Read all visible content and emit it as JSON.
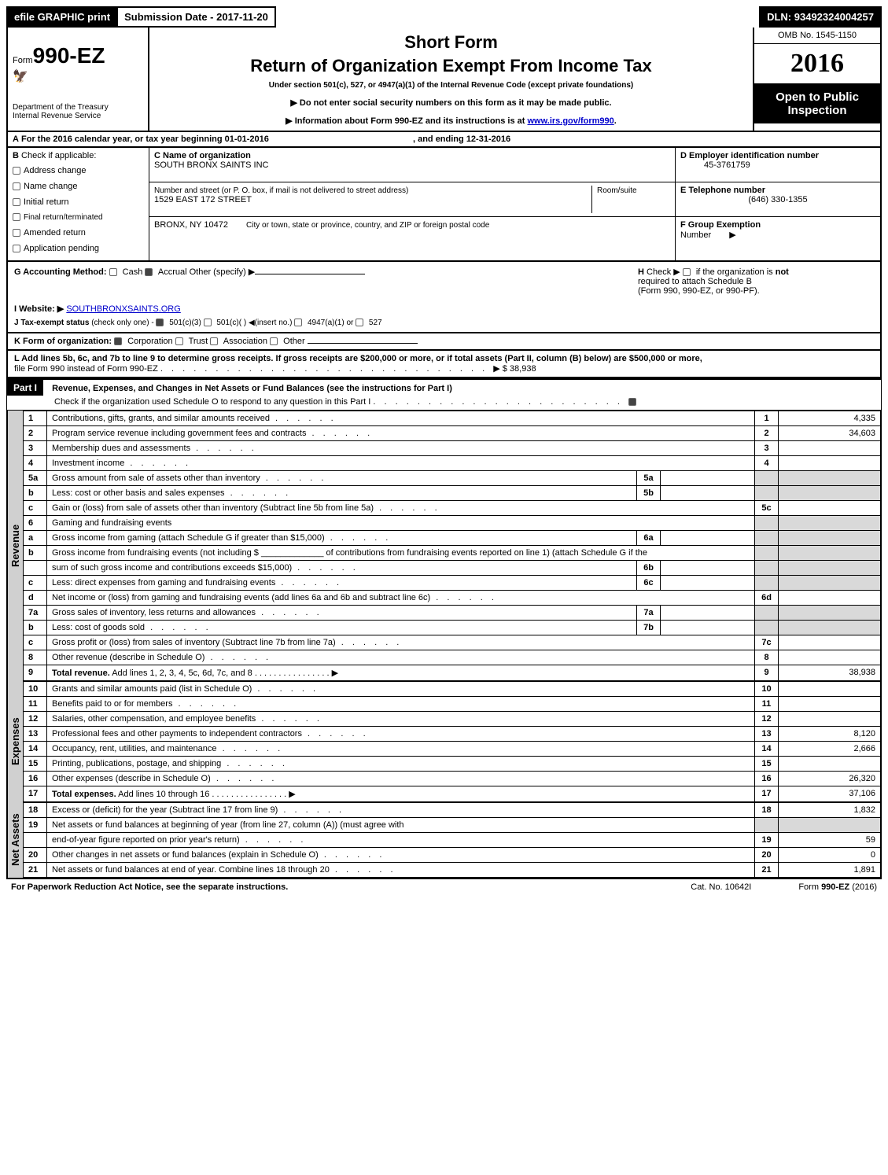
{
  "topbar": {
    "efile": "efile GRAPHIC print",
    "submission_label": "Submission Date - ",
    "submission_date": "2017-11-20",
    "dln_label": "DLN: ",
    "dln": "93492324004257"
  },
  "header": {
    "form_prefix": "Form",
    "form_number": "990-EZ",
    "dept1": "Department of the Treasury",
    "dept2": "Internal Revenue Service",
    "title_short": "Short Form",
    "title_main": "Return of Organization Exempt From Income Tax",
    "sub1": "Under section 501(c), 527, or 4947(a)(1) of the Internal Revenue Code (except private foundations)",
    "sub2": "▶ Do not enter social security numbers on this form as it may be made public.",
    "sub3_prefix": "▶ Information about Form 990-EZ and its instructions is at ",
    "sub3_link": "www.irs.gov/form990",
    "omb": "OMB No. 1545-1150",
    "year": "2016",
    "open1": "Open to Public",
    "open2": "Inspection"
  },
  "lineA": {
    "label_a": "A",
    "text1": "For the 2016 calendar year, or tax year beginning ",
    "begin": "01-01-2016",
    "text2": ", and ending ",
    "end": "12-31-2016"
  },
  "boxB": {
    "label_b": "B",
    "check_label": "Check if applicable:",
    "items": [
      "Address change",
      "Name change",
      "Initial return",
      "Final return/terminated",
      "Amended return",
      "Application pending"
    ]
  },
  "boxC": {
    "label": "C Name of organization",
    "name": "SOUTH BRONX SAINTS INC",
    "addr_label": "Number and street (or P. O. box, if mail is not delivered to street address)",
    "addr": "1529 EAST 172 STREET",
    "room_label": "Room/suite",
    "city_full": "BRONX, NY  10472",
    "city_label": "City or town, state or province, country, and ZIP or foreign postal code"
  },
  "boxDEF": {
    "d_label": "D Employer identification number",
    "d_value": "45-3761759",
    "e_label": "E Telephone number",
    "e_value": "(646) 330-1355",
    "f_label": "F Group Exemption",
    "f_label2": "Number",
    "f_arrow": "▶"
  },
  "gh": {
    "g_label": "G Accounting Method:",
    "g_cash": "Cash",
    "g_accrual": "Accrual",
    "g_other": "Other (specify) ▶",
    "h_label": "H",
    "h_text1": "Check ▶",
    "h_text2": "if the organization is ",
    "h_not": "not",
    "h_text3": "required to attach Schedule B",
    "h_text4": "(Form 990, 990-EZ, or 990-PF).",
    "i_label": "I Website: ▶",
    "i_value": "SOUTHBRONXSAINTS.ORG",
    "j_label": "J Tax-exempt status",
    "j_text": "(check only one) -",
    "j_opts": [
      "501(c)(3)",
      "501(c)( )",
      "◀(insert no.)",
      "4947(a)(1) or",
      "527"
    ],
    "k_label": "K Form of organization:",
    "k_opts": [
      "Corporation",
      "Trust",
      "Association",
      "Other"
    ],
    "l_text1": "L Add lines 5b, 6c, and 7b to line 9 to determine gross receipts. If gross receipts are $200,000 or more, or if total assets (Part II, column (B) below) are $500,000 or more,",
    "l_text2": "file Form 990 instead of Form 990-EZ",
    "l_amount": "▶ $ 38,938"
  },
  "part1": {
    "hdr": "Part I",
    "title": "Revenue, Expenses, and Changes in Net Assets or Fund Balances (see the instructions for Part I)",
    "checkline": "Check if the organization used Schedule O to respond to any question in this Part I"
  },
  "side": {
    "revenue": "Revenue",
    "expenses": "Expenses",
    "netassets": "Net Assets"
  },
  "lines": [
    {
      "n": "1",
      "desc": "Contributions, gifts, grants, and similar amounts received",
      "ln": "1",
      "amt": "4,335"
    },
    {
      "n": "2",
      "desc": "Program service revenue including government fees and contracts",
      "ln": "2",
      "amt": "34,603"
    },
    {
      "n": "3",
      "desc": "Membership dues and assessments",
      "ln": "3",
      "amt": ""
    },
    {
      "n": "4",
      "desc": "Investment income",
      "ln": "4",
      "amt": ""
    },
    {
      "n": "5a",
      "desc": "Gross amount from sale of assets other than inventory",
      "inlbl": "5a",
      "inval": ""
    },
    {
      "n": "b",
      "desc": "Less: cost or other basis and sales expenses",
      "inlbl": "5b",
      "inval": ""
    },
    {
      "n": "c",
      "desc": "Gain or (loss) from sale of assets other than inventory (Subtract line 5b from line 5a)",
      "ln": "5c",
      "amt": ""
    },
    {
      "n": "6",
      "desc": "Gaming and fundraising events"
    },
    {
      "n": "a",
      "desc": "Gross income from gaming (attach Schedule G if greater than $15,000)",
      "inlbl": "6a",
      "inval": ""
    },
    {
      "n": "b",
      "desc": "Gross income from fundraising events (not including $ _____________ of contributions from fundraising events reported on line 1) (attach Schedule G if the"
    },
    {
      "n": "",
      "desc": "sum of such gross income and contributions exceeds $15,000)",
      "inlbl": "6b",
      "inval": ""
    },
    {
      "n": "c",
      "desc": "Less: direct expenses from gaming and fundraising events",
      "inlbl": "6c",
      "inval": ""
    },
    {
      "n": "d",
      "desc": "Net income or (loss) from gaming and fundraising events (add lines 6a and 6b and subtract line 6c)",
      "ln": "6d",
      "amt": ""
    },
    {
      "n": "7a",
      "desc": "Gross sales of inventory, less returns and allowances",
      "inlbl": "7a",
      "inval": ""
    },
    {
      "n": "b",
      "desc": "Less: cost of goods sold",
      "inlbl": "7b",
      "inval": ""
    },
    {
      "n": "c",
      "desc": "Gross profit or (loss) from sales of inventory (Subtract line 7b from line 7a)",
      "ln": "7c",
      "amt": ""
    },
    {
      "n": "8",
      "desc": "Other revenue (describe in Schedule O)",
      "ln": "8",
      "amt": ""
    },
    {
      "n": "9",
      "desc": "Total revenue. Add lines 1, 2, 3, 4, 5c, 6d, 7c, and 8",
      "ln": "9",
      "amt": "38,938",
      "bold": true,
      "arrow": true
    }
  ],
  "exp_lines": [
    {
      "n": "10",
      "desc": "Grants and similar amounts paid (list in Schedule O)",
      "ln": "10",
      "amt": ""
    },
    {
      "n": "11",
      "desc": "Benefits paid to or for members",
      "ln": "11",
      "amt": ""
    },
    {
      "n": "12",
      "desc": "Salaries, other compensation, and employee benefits",
      "ln": "12",
      "amt": ""
    },
    {
      "n": "13",
      "desc": "Professional fees and other payments to independent contractors",
      "ln": "13",
      "amt": "8,120"
    },
    {
      "n": "14",
      "desc": "Occupancy, rent, utilities, and maintenance",
      "ln": "14",
      "amt": "2,666"
    },
    {
      "n": "15",
      "desc": "Printing, publications, postage, and shipping",
      "ln": "15",
      "amt": ""
    },
    {
      "n": "16",
      "desc": "Other expenses (describe in Schedule O)",
      "ln": "16",
      "amt": "26,320"
    },
    {
      "n": "17",
      "desc": "Total expenses. Add lines 10 through 16",
      "ln": "17",
      "amt": "37,106",
      "bold": true,
      "arrow": true
    }
  ],
  "na_lines": [
    {
      "n": "18",
      "desc": "Excess or (deficit) for the year (Subtract line 17 from line 9)",
      "ln": "18",
      "amt": "1,832"
    },
    {
      "n": "19",
      "desc": "Net assets or fund balances at beginning of year (from line 27, column (A)) (must agree with"
    },
    {
      "n": "",
      "desc": "end-of-year figure reported on prior year's return)",
      "ln": "19",
      "amt": "59"
    },
    {
      "n": "20",
      "desc": "Other changes in net assets or fund balances (explain in Schedule O)",
      "ln": "20",
      "amt": "0"
    },
    {
      "n": "21",
      "desc": "Net assets or fund balances at end of year. Combine lines 18 through 20",
      "ln": "21",
      "amt": "1,891"
    }
  ],
  "footer": {
    "left": "For Paperwork Reduction Act Notice, see the separate instructions.",
    "mid": "Cat. No. 10642I",
    "right_prefix": "Form ",
    "right_form": "990-EZ",
    "right_year": " (2016)"
  },
  "colors": {
    "black": "#000000",
    "white": "#ffffff",
    "grey": "#d9d9d9",
    "link": "#0000cc"
  }
}
